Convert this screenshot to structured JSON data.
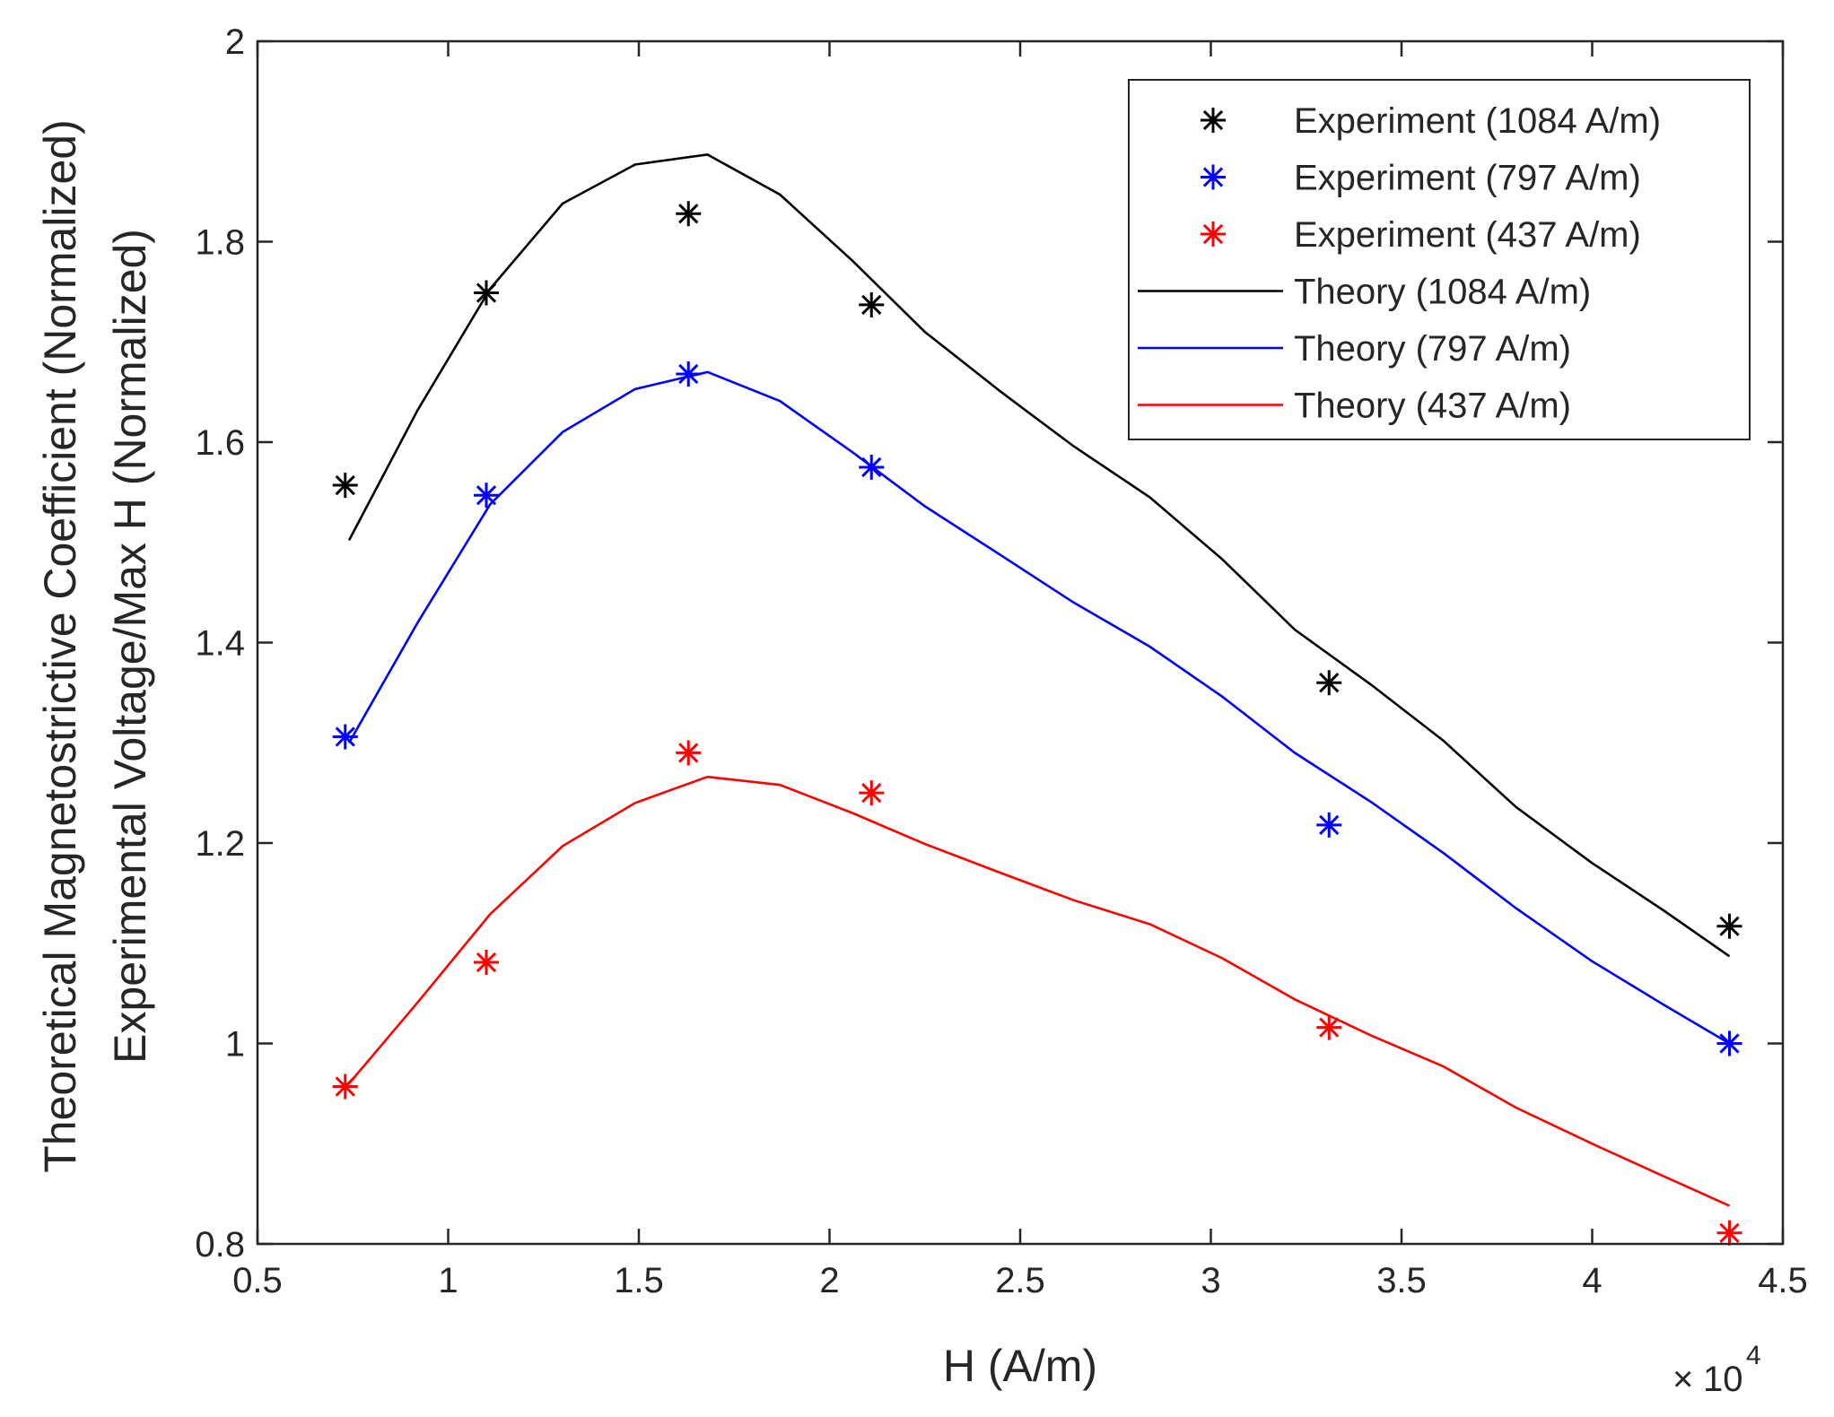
{
  "chart_data": {
    "type": "line",
    "title": "",
    "xlabel": "H (A/m)",
    "ylabel_lines": [
      "Theoretical Magnetostrictive Coefficient (Normalized)",
      "Experimental Voltage/Max H (Normalized)"
    ],
    "x_exponent_base": "10",
    "x_exponent_power": "4",
    "x_multiplier_symbol": "×",
    "xlim": [
      0.5,
      4.5
    ],
    "ylim": [
      0.8,
      2.0
    ],
    "xticks": [
      0.5,
      1,
      1.5,
      2,
      2.5,
      3,
      3.5,
      4,
      4.5
    ],
    "xtick_labels": [
      "0.5",
      "1",
      "1.5",
      "2",
      "2.5",
      "3",
      "3.5",
      "4",
      "4.5"
    ],
    "yticks": [
      0.8,
      1.0,
      1.2,
      1.4,
      1.6,
      1.8,
      2.0
    ],
    "ytick_labels": [
      "0.8",
      "1",
      "1.2",
      "1.4",
      "1.6",
      "1.8",
      "2"
    ],
    "grid": false,
    "legend_position": "top-right",
    "colors": {
      "black": "#000000",
      "blue": "#0000ff",
      "red": "#ff0000",
      "axis": "#262626"
    },
    "series": [
      {
        "name": "Experiment (1084 A/m)",
        "kind": "marker",
        "marker": "asterisk",
        "color": "#000000",
        "x": [
          0.73,
          1.1,
          1.63,
          2.11,
          3.31,
          4.36
        ],
        "y": [
          1.557,
          1.749,
          1.828,
          1.737,
          1.36,
          1.117
        ]
      },
      {
        "name": "Experiment (797 A/m)",
        "kind": "marker",
        "marker": "asterisk",
        "color": "#0000ff",
        "x": [
          0.73,
          1.1,
          1.63,
          2.11,
          3.31,
          4.36
        ],
        "y": [
          1.306,
          1.547,
          1.668,
          1.575,
          1.218,
          1.0
        ]
      },
      {
        "name": "Experiment (437 A/m)",
        "kind": "marker",
        "marker": "asterisk",
        "color": "#ff0000",
        "x": [
          0.73,
          1.1,
          1.63,
          2.11,
          3.31,
          4.36
        ],
        "y": [
          0.957,
          1.081,
          1.29,
          1.25,
          1.016,
          0.811
        ]
      },
      {
        "name": "Theory (1084 A/m)",
        "kind": "line",
        "color": "#000000",
        "x": [
          0.74,
          0.92,
          1.11,
          1.3,
          1.49,
          1.68,
          1.87,
          2.06,
          2.25,
          2.45,
          2.64,
          2.84,
          3.03,
          3.22,
          3.42,
          3.61,
          3.8,
          4.0,
          4.19,
          4.36
        ],
        "y": [
          1.502,
          1.632,
          1.753,
          1.838,
          1.877,
          1.887,
          1.847,
          1.781,
          1.71,
          1.65,
          1.596,
          1.545,
          1.483,
          1.413,
          1.358,
          1.302,
          1.236,
          1.18,
          1.132,
          1.087
        ]
      },
      {
        "name": "Theory (797 A/m)",
        "kind": "line",
        "color": "#0000ff",
        "x": [
          0.74,
          0.92,
          1.11,
          1.3,
          1.49,
          1.68,
          1.87,
          2.06,
          2.25,
          2.45,
          2.64,
          2.84,
          3.03,
          3.22,
          3.42,
          3.61,
          3.8,
          4.0,
          4.19,
          4.36
        ],
        "y": [
          1.3,
          1.42,
          1.538,
          1.61,
          1.653,
          1.67,
          1.641,
          1.59,
          1.536,
          1.487,
          1.44,
          1.396,
          1.346,
          1.29,
          1.241,
          1.19,
          1.135,
          1.082,
          1.038,
          1.0
        ]
      },
      {
        "name": "Theory (437 A/m)",
        "kind": "line",
        "color": "#ff0000",
        "x": [
          0.74,
          0.92,
          1.11,
          1.3,
          1.49,
          1.68,
          1.87,
          2.06,
          2.25,
          2.45,
          2.64,
          2.84,
          3.03,
          3.22,
          3.42,
          3.61,
          3.8,
          4.0,
          4.19,
          4.36
        ],
        "y": [
          0.96,
          1.041,
          1.129,
          1.197,
          1.24,
          1.266,
          1.258,
          1.23,
          1.199,
          1.17,
          1.143,
          1.119,
          1.085,
          1.044,
          1.008,
          0.977,
          0.936,
          0.9,
          0.867,
          0.838
        ]
      }
    ]
  }
}
